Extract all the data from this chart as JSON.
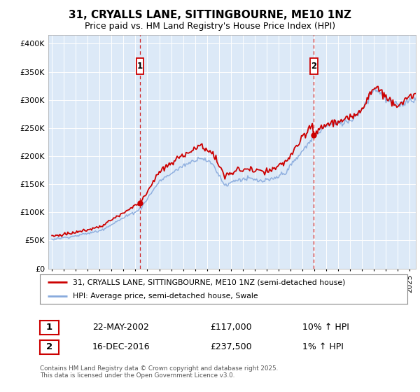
{
  "title": "31, CRYALLS LANE, SITTINGBOURNE, ME10 1NZ",
  "subtitle": "Price paid vs. HM Land Registry's House Price Index (HPI)",
  "ytick_values": [
    0,
    50000,
    100000,
    150000,
    200000,
    250000,
    300000,
    350000,
    400000
  ],
  "ylim": [
    0,
    415000
  ],
  "xlim_start": 1994.7,
  "xlim_end": 2025.5,
  "xticks": [
    1995,
    1996,
    1997,
    1998,
    1999,
    2000,
    2001,
    2002,
    2003,
    2004,
    2005,
    2006,
    2007,
    2008,
    2009,
    2010,
    2011,
    2012,
    2013,
    2014,
    2015,
    2016,
    2017,
    2018,
    2019,
    2020,
    2021,
    2022,
    2023,
    2024,
    2025
  ],
  "sale1_x": 2002.388,
  "sale1_y": 117000,
  "sale2_x": 2016.958,
  "sale2_y": 237500,
  "dashed_color": "#cc0000",
  "property_line_color": "#cc0000",
  "hpi_line_color": "#88aadd",
  "plot_bg_color": "#dce9f7",
  "grid_color": "#ffffff",
  "legend_line1": "31, CRYALLS LANE, SITTINGBOURNE, ME10 1NZ (semi-detached house)",
  "legend_line2": "HPI: Average price, semi-detached house, Swale",
  "table_row1": [
    "1",
    "22-MAY-2002",
    "£117,000",
    "10% ↑ HPI"
  ],
  "table_row2": [
    "2",
    "16-DEC-2016",
    "£237,500",
    "1% ↑ HPI"
  ],
  "footer": "Contains HM Land Registry data © Crown copyright and database right 2025.\nThis data is licensed under the Open Government Licence v3.0."
}
